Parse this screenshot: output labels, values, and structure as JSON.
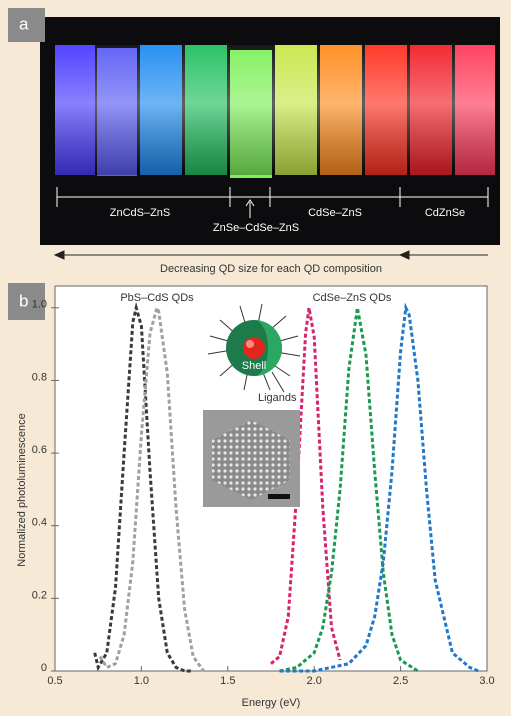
{
  "panel_a": {
    "label": "a",
    "groups": [
      "ZnCdS–ZnS",
      "ZnSe–CdSe–ZnS",
      "CdSe–ZnS",
      "CdZnSe"
    ],
    "caption": "Decreasing QD size for each QD composition"
  },
  "chart_data": {
    "type": "line",
    "panel_label": "b",
    "xlabel": "Energy (eV)",
    "ylabel": "Normalized photoluminescence",
    "annotations": [
      "PbS–CdS QDs",
      "CdSe–ZnS QDs",
      "Shell",
      "Ligands"
    ],
    "xlim": [
      0.5,
      3.0
    ],
    "ylim": [
      0,
      1.06
    ],
    "xticks": [
      0.5,
      {
        "value": 1,
        "label": "1.0"
      },
      1.5,
      {
        "value": 2,
        "label": "2.0"
      },
      2.5,
      {
        "value": 3,
        "label": "3.0"
      }
    ],
    "yticks": [
      0,
      0.2,
      0.4,
      0.6,
      0.8,
      {
        "value": 1,
        "label": "1.0"
      }
    ],
    "series": [
      {
        "color": "#3a3a3a",
        "x": [
          0.73,
          0.75,
          0.8,
          0.85,
          0.9,
          0.95,
          0.97,
          1.0,
          1.05,
          1.1,
          1.15,
          1.2,
          1.25,
          1.3
        ],
        "values": [
          0.05,
          0.01,
          0.05,
          0.23,
          0.6,
          0.96,
          1.0,
          0.95,
          0.55,
          0.2,
          0.05,
          0.01,
          0,
          0
        ]
      },
      {
        "color": "#a0a0a0",
        "x": [
          0.76,
          0.8,
          0.85,
          0.9,
          0.95,
          1.0,
          1.05,
          1.09,
          1.1,
          1.15,
          1.2,
          1.25,
          1.3,
          1.36
        ],
        "values": [
          0.04,
          0.01,
          0.02,
          0.1,
          0.3,
          0.65,
          0.93,
          1.0,
          0.99,
          0.82,
          0.45,
          0.17,
          0.04,
          0
        ]
      },
      {
        "color": "#d8246e",
        "x": [
          1.75,
          1.8,
          1.85,
          1.9,
          1.95,
          1.97,
          2.0,
          2.05,
          2.1,
          2.15
        ],
        "values": [
          0.02,
          0.04,
          0.15,
          0.5,
          0.93,
          1.0,
          0.92,
          0.45,
          0.12,
          0.03
        ]
      },
      {
        "color": "#1a9a50",
        "x": [
          1.8,
          1.9,
          2.0,
          2.05,
          2.1,
          2.15,
          2.2,
          2.25,
          2.3,
          2.35,
          2.4,
          2.45,
          2.5,
          2.6
        ],
        "values": [
          0,
          0.01,
          0.05,
          0.12,
          0.27,
          0.5,
          0.83,
          1.0,
          0.87,
          0.55,
          0.27,
          0.1,
          0.03,
          0
        ]
      },
      {
        "color": "#1f78c8",
        "x": [
          1.8,
          2.0,
          2.2,
          2.3,
          2.35,
          2.4,
          2.45,
          2.5,
          2.53,
          2.55,
          2.6,
          2.65,
          2.7,
          2.8,
          2.9,
          2.95
        ],
        "values": [
          0,
          0,
          0.02,
          0.07,
          0.15,
          0.3,
          0.55,
          0.88,
          1.0,
          0.98,
          0.8,
          0.5,
          0.25,
          0.05,
          0.01,
          0
        ]
      }
    ]
  }
}
